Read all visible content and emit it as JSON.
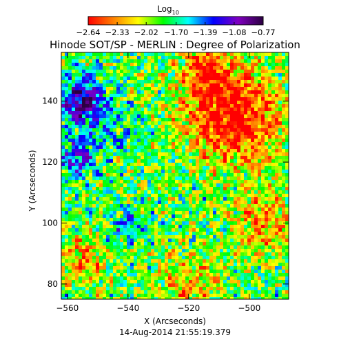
{
  "chart_data": {
    "type": "heatmap",
    "title": "Hinode SOT/SP - MERLIN : Degree of Polarization",
    "xlabel": "X (Arcseconds)",
    "ylabel": "Y (Arcseconds)",
    "timestamp": "14-Aug-2014 21:55:19.379",
    "xlim": [
      -562,
      -487
    ],
    "ylim": [
      75,
      156
    ],
    "x_ticks": [
      -560,
      -540,
      -520,
      -500
    ],
    "x_tick_labels": [
      "−560",
      "−540",
      "−520",
      "−500"
    ],
    "y_ticks": [
      80,
      100,
      120,
      140
    ],
    "y_tick_labels": [
      "80",
      "100",
      "120",
      "140"
    ],
    "colorbar": {
      "label_main": "Log",
      "label_sub": "10",
      "range": [
        -2.64,
        -0.77
      ],
      "ticks": [
        -2.64,
        -2.33,
        -2.02,
        -1.7,
        -1.39,
        -1.08,
        -0.77
      ],
      "tick_labels": [
        "−2.64",
        "−2.33",
        "−2.02",
        "−1.70",
        "−1.39",
        "−1.08",
        "−0.77"
      ]
    },
    "colormap": [
      "#ff0000",
      "#ff7f00",
      "#ffff00",
      "#00ff00",
      "#00ffff",
      "#0000ff",
      "#8000c0",
      "#2a0040"
    ],
    "z_regions": [
      {
        "x": -505,
        "y": 135,
        "sigma": 15,
        "amp": -0.9
      },
      {
        "x": -515,
        "y": 150,
        "sigma": 8,
        "amp": -0.6
      },
      {
        "x": -495,
        "y": 100,
        "sigma": 10,
        "amp": -0.5
      },
      {
        "x": -520,
        "y": 80,
        "sigma": 10,
        "amp": -0.4
      },
      {
        "x": -555,
        "y": 88,
        "sigma": 8,
        "amp": -0.5
      },
      {
        "x": -555,
        "y": 140,
        "sigma": 7,
        "amp": 0.9
      },
      {
        "x": -557,
        "y": 122,
        "sigma": 6,
        "amp": 0.6
      },
      {
        "x": -540,
        "y": 100,
        "sigma": 6,
        "amp": 0.35
      },
      {
        "x": -545,
        "y": 130,
        "sigma": 8,
        "amp": 0.2
      }
    ],
    "z_base": -1.85,
    "z_noise": 0.35
  }
}
